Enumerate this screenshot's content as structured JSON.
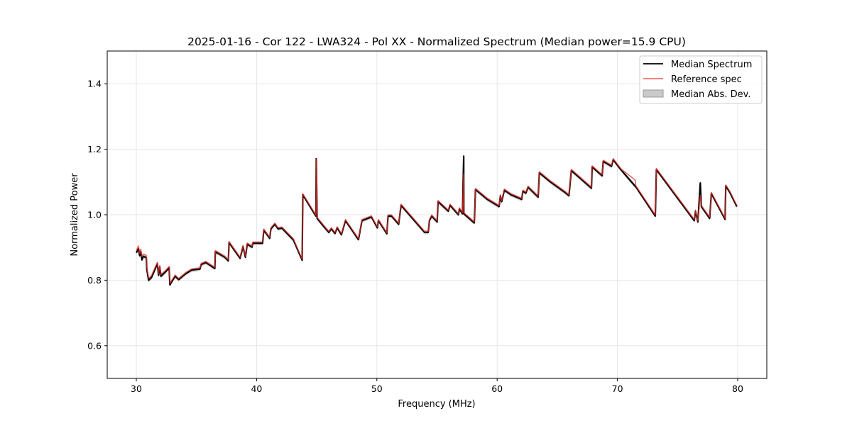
{
  "chart_data": {
    "type": "line",
    "title": "2025-01-16 - Cor 122 - LWA324 - Pol XX - Normalized Spectrum (Median power=15.9 CPU)",
    "xlabel": "Frequency (MHz)",
    "ylabel": "Normalized Power",
    "xlim": [
      27.58,
      82.42
    ],
    "ylim": [
      0.5,
      1.5
    ],
    "xticks": [
      30,
      40,
      50,
      60,
      70,
      80
    ],
    "yticks": [
      0.6,
      0.8,
      1.0,
      1.2,
      1.4
    ],
    "xtick_labels": [
      "30",
      "40",
      "50",
      "60",
      "70",
      "80"
    ],
    "ytick_labels": [
      "0.6",
      "0.8",
      "1.0",
      "1.2",
      "1.4"
    ],
    "grid": true,
    "legend_position": "top-right",
    "legend": [
      "Median Spectrum",
      "Reference spec",
      "Median Abs. Dev."
    ],
    "colors": {
      "median": "#000000",
      "reference": "#e8302a",
      "mad": "#bdbdbd"
    },
    "mad_halfwidth": 0.006,
    "x": [
      30.0,
      30.18,
      30.28,
      30.37,
      30.47,
      30.57,
      30.83,
      30.87,
      31.02,
      31.26,
      31.75,
      31.85,
      31.95,
      32.05,
      32.44,
      32.73,
      32.79,
      33.23,
      33.52,
      34.11,
      34.6,
      35.29,
      35.39,
      35.78,
      36.53,
      36.57,
      37.36,
      37.65,
      37.71,
      38.63,
      38.87,
      39.07,
      39.22,
      39.62,
      39.68,
      40.5,
      40.6,
      41.09,
      41.19,
      41.52,
      41.78,
      42.11,
      43.06,
      43.79,
      43.84,
      44.93,
      44.96,
      45.03,
      45.52,
      46.01,
      46.21,
      46.52,
      46.7,
      47.05,
      47.39,
      48.47,
      48.76,
      49.55,
      50.04,
      50.13,
      50.83,
      50.93,
      51.22,
      51.81,
      52.01,
      53.97,
      54.27,
      54.37,
      54.56,
      55.01,
      55.09,
      55.94,
      56.08,
      56.78,
      56.86,
      57.12,
      57.22,
      57.23,
      58.1,
      58.2,
      59.18,
      60.16,
      60.27,
      60.38,
      60.6,
      61.15,
      62.04,
      62.14,
      62.39,
      62.57,
      63.41,
      63.51,
      64.4,
      65.68,
      65.97,
      66.17,
      67.84,
      67.9,
      68.73,
      68.82,
      69.51,
      69.65,
      70.3,
      71.5,
      71.52,
      73.15,
      73.24,
      76.39,
      76.49,
      76.69,
      76.89,
      76.98,
      77.67,
      77.81,
      78.95,
      79.01,
      79.35,
      79.93
    ],
    "series": [
      {
        "name": "Median Spectrum",
        "values": [
          0.884,
          0.896,
          0.875,
          0.888,
          0.862,
          0.873,
          0.869,
          0.834,
          0.8,
          0.808,
          0.85,
          0.815,
          0.84,
          0.812,
          0.826,
          0.838,
          0.786,
          0.812,
          0.802,
          0.82,
          0.831,
          0.834,
          0.848,
          0.854,
          0.836,
          0.887,
          0.87,
          0.859,
          0.915,
          0.867,
          0.903,
          0.87,
          0.91,
          0.901,
          0.913,
          0.913,
          0.953,
          0.928,
          0.957,
          0.971,
          0.957,
          0.959,
          0.923,
          0.861,
          1.061,
          0.996,
          1.171,
          0.989,
          0.967,
          0.946,
          0.957,
          0.943,
          0.96,
          0.939,
          0.982,
          0.924,
          0.982,
          0.993,
          0.96,
          0.982,
          0.942,
          0.996,
          0.996,
          0.971,
          1.029,
          0.946,
          0.946,
          0.982,
          0.996,
          0.978,
          1.04,
          1.011,
          1.029,
          1.0,
          1.018,
          1.003,
          1.179,
          1.003,
          0.975,
          1.077,
          1.047,
          1.025,
          1.058,
          1.04,
          1.075,
          1.061,
          1.047,
          1.072,
          1.066,
          1.084,
          1.054,
          1.128,
          1.101,
          1.067,
          1.058,
          1.135,
          1.081,
          1.146,
          1.119,
          1.163,
          1.148,
          1.168,
          1.137,
          1.086,
          1.086,
          0.996,
          1.138,
          0.982,
          1.011,
          0.978,
          1.097,
          1.025,
          0.989,
          1.065,
          0.986,
          1.088,
          1.068,
          1.025
        ]
      },
      {
        "name": "Reference spec",
        "values": [
          0.89,
          0.905,
          0.882,
          0.895,
          0.872,
          0.88,
          0.876,
          0.84,
          0.806,
          0.814,
          0.855,
          0.82,
          0.845,
          0.818,
          0.83,
          0.842,
          0.79,
          0.816,
          0.805,
          0.823,
          0.834,
          0.837,
          0.851,
          0.857,
          0.839,
          0.89,
          0.873,
          0.862,
          0.918,
          0.87,
          0.906,
          0.873,
          0.913,
          0.904,
          0.916,
          0.916,
          0.956,
          0.931,
          0.96,
          0.974,
          0.96,
          0.962,
          0.926,
          0.864,
          1.064,
          0.999,
          1.17,
          0.992,
          0.97,
          0.949,
          0.96,
          0.946,
          0.963,
          0.942,
          0.985,
          0.927,
          0.985,
          0.996,
          0.963,
          0.985,
          0.945,
          0.999,
          0.999,
          0.974,
          1.032,
          0.949,
          0.949,
          0.985,
          0.999,
          0.981,
          1.043,
          1.014,
          1.032,
          1.003,
          1.021,
          1.006,
          1.125,
          1.006,
          0.978,
          1.08,
          1.05,
          1.028,
          1.061,
          1.043,
          1.078,
          1.064,
          1.05,
          1.075,
          1.069,
          1.087,
          1.057,
          1.131,
          1.104,
          1.07,
          1.061,
          1.138,
          1.084,
          1.149,
          1.122,
          1.166,
          1.151,
          1.171,
          1.14,
          1.105,
          1.089,
          0.999,
          1.141,
          0.985,
          1.014,
          0.981,
          1.06,
          1.028,
          0.992,
          1.068,
          0.989,
          1.091,
          1.071,
          1.028
        ]
      }
    ]
  }
}
